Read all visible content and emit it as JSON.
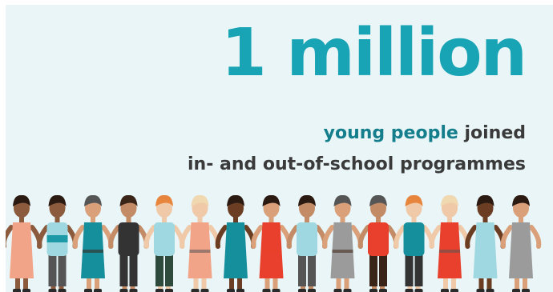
{
  "headline": "1 million",
  "subtitle": {
    "highlight": "young people",
    "rest": " joined",
    "line2": "in- and out-of-school programmes"
  },
  "colors": {
    "headline": "#18a4b4",
    "highlight": "#147e8c",
    "text": "#3a3a3a",
    "background": "#e9f5f7"
  },
  "people": [
    {
      "skin": "#8c5a3c",
      "hair": "#2b1a12",
      "top": "#f2a488",
      "bottom": "#f2a488",
      "dress": true
    },
    {
      "skin": "#8c5a3c",
      "hair": "#2b1a12",
      "top": "#9fd8e0",
      "bottom": "#555555",
      "dress": false,
      "stripe": "#1c9aa8"
    },
    {
      "skin": "#d9a07a",
      "hair": "#555555",
      "top": "#168f9c",
      "bottom": "#3a2418",
      "dress": true
    },
    {
      "skin": "#c38b66",
      "hair": "#3a2418",
      "top": "#333333",
      "bottom": "#333333",
      "dress": false
    },
    {
      "skin": "#f0c9a8",
      "hair": "#e8853c",
      "top": "#9fd8e0",
      "bottom": "#2e4a3c",
      "dress": false
    },
    {
      "skin": "#f0c9a8",
      "hair": "#f0d8b0",
      "top": "#f2a488",
      "bottom": "#555555",
      "dress": true
    },
    {
      "skin": "#6b3e24",
      "hair": "#2b1a12",
      "top": "#168f9c",
      "bottom": "#168f9c",
      "dress": true
    },
    {
      "skin": "#d9a07a",
      "hair": "#2b1a12",
      "top": "#e8402c",
      "bottom": "#e8402c",
      "dress": true
    },
    {
      "skin": "#c38b66",
      "hair": "#2b1a12",
      "top": "#9fd8e0",
      "bottom": "#555555",
      "dress": false
    },
    {
      "skin": "#d9a07a",
      "hair": "#555555",
      "top": "#9b9b9b",
      "bottom": "#3a2418",
      "dress": true
    },
    {
      "skin": "#c38b66",
      "hair": "#555555",
      "top": "#e8402c",
      "bottom": "#3a2418",
      "dress": false
    },
    {
      "skin": "#f0c9a8",
      "hair": "#e8853c",
      "top": "#168f9c",
      "bottom": "#333333",
      "dress": false
    },
    {
      "skin": "#f0c9a8",
      "hair": "#f0d8b0",
      "top": "#e8402c",
      "bottom": "#555555",
      "dress": true
    },
    {
      "skin": "#6b3e24",
      "hair": "#2b1a12",
      "top": "#9fd8e0",
      "bottom": "#9fd8e0",
      "dress": true
    },
    {
      "skin": "#d9a07a",
      "hair": "#2b1a12",
      "top": "#9b9b9b",
      "bottom": "#9b9b9b",
      "dress": true
    }
  ]
}
